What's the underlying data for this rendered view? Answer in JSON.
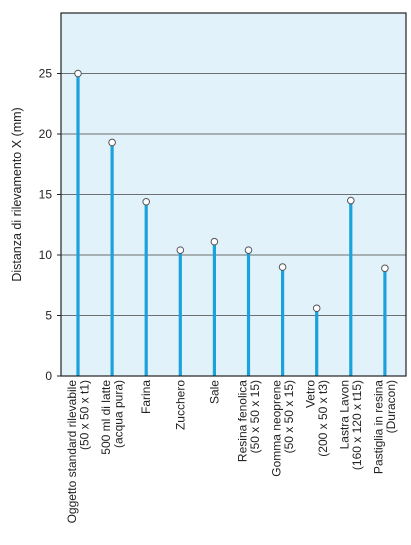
{
  "chart_data": {
    "type": "lollipop",
    "ylabel": "Distanza di rilevamento X (mm)",
    "xlabel": "",
    "ylim": [
      0,
      30
    ],
    "yticks": [
      0,
      5,
      10,
      15,
      20,
      25
    ],
    "grid": true,
    "categories": [
      [
        "Oggetto standard rilevabile",
        "(50 x 50 x t1)"
      ],
      [
        "500 ml di latte",
        "(acqua pura)"
      ],
      [
        "Farina"
      ],
      [
        "Zucchero"
      ],
      [
        "Sale"
      ],
      [
        "Resina fenolica",
        "(50 x 50 x 15)"
      ],
      [
        "Gomma neoprene",
        "(50 x 50 x 15)"
      ],
      [
        "Vetro",
        "(200 x 50 x t3)"
      ],
      [
        "Lastra Lavon",
        "(160 x 120 x t15)"
      ],
      [
        "Pastiglia in resina",
        "(Duracon)"
      ]
    ],
    "values": [
      25,
      19.3,
      14.4,
      10.4,
      11.1,
      10.4,
      9.0,
      5.6,
      14.5,
      8.9
    ],
    "colors": {
      "plot_background": "#e1f2fb",
      "stem": "#1ba1dc",
      "marker_fill": "#ffffff",
      "marker_edge": "#555555",
      "grid": "#444444",
      "frame": "#222222"
    }
  }
}
